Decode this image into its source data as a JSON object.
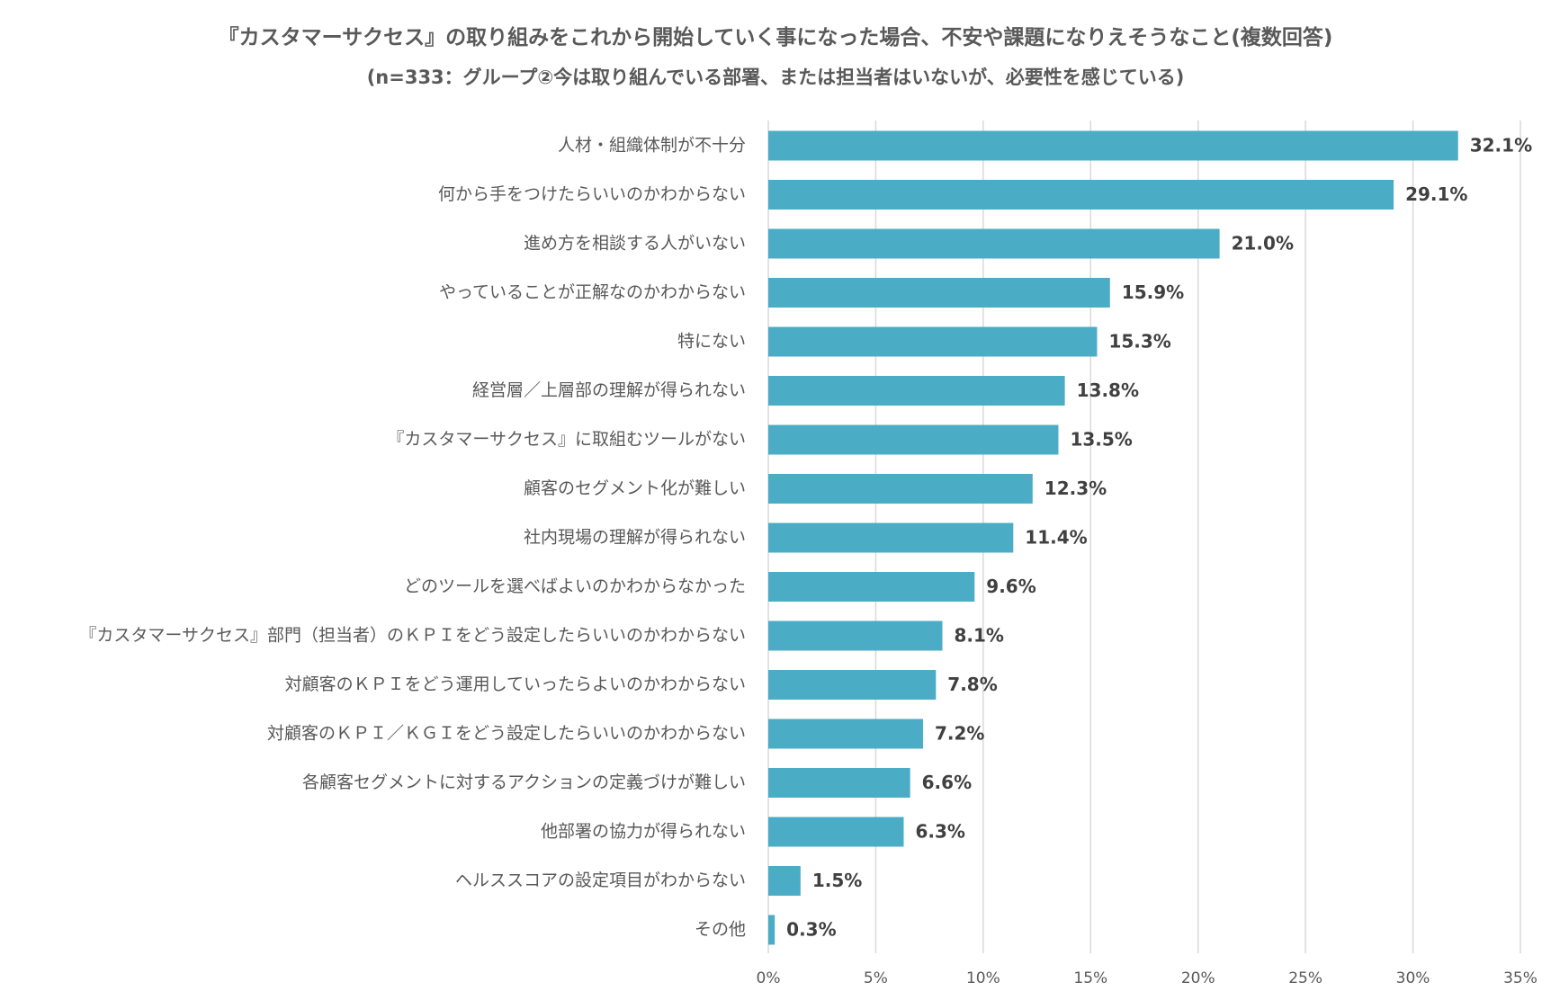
{
  "chart_data": {
    "type": "bar",
    "orientation": "horizontal",
    "title": "『カスタマーサクセス』の取り組みをこれから開始していく事になった場合、不安や課題になりえそうなこと(複数回答)",
    "subtitle": "(n=333：グループ②今は取り組んでいる部署、または担当者はいないが、必要性を感じている)",
    "categories": [
      "人材・組織体制が不十分",
      "何から手をつけたらいいのかわからない",
      "進め方を相談する人がいない",
      "やっていることが正解なのかわからない",
      "特にない",
      "経営層／上層部の理解が得られない",
      "『カスタマーサクセス』に取組むツールがない",
      "顧客のセグメント化が難しい",
      "社内現場の理解が得られない",
      "どのツールを選べばよいのかわからなかった",
      "『カスタマーサクセス』部門（担当者）のＫＰＩをどう設定したらいいのかわからない",
      "対顧客のＫＰＩをどう運用していったらよいのかわからない",
      "対顧客のＫＰＩ／ＫＧＩをどう設定したらいいのかわからない",
      "各顧客セグメントに対するアクションの定義づけが難しい",
      "他部署の協力が得られない",
      "ヘルススコアの設定項目がわからない",
      "その他"
    ],
    "values": [
      32.1,
      29.1,
      21.0,
      15.9,
      15.3,
      13.8,
      13.5,
      12.3,
      11.4,
      9.6,
      8.1,
      7.8,
      7.2,
      6.6,
      6.3,
      1.5,
      0.3
    ],
    "value_labels": [
      "32.1%",
      "29.1%",
      "21.0%",
      "15.9%",
      "15.3%",
      "13.8%",
      "13.5%",
      "12.3%",
      "11.4%",
      "9.6%",
      "8.1%",
      "7.8%",
      "7.2%",
      "6.6%",
      "6.3%",
      "1.5%",
      "0.3%"
    ],
    "xlim": [
      0,
      35
    ],
    "xticks": [
      0,
      5,
      10,
      15,
      20,
      25,
      30,
      35
    ],
    "xtick_labels": [
      "0%",
      "5%",
      "10%",
      "15%",
      "20%",
      "25%",
      "30%",
      "35%"
    ],
    "grid": "vertical",
    "bar_color": "#4BACC6",
    "gridline_color": "#D9D9D9",
    "text_color": "#595959"
  }
}
